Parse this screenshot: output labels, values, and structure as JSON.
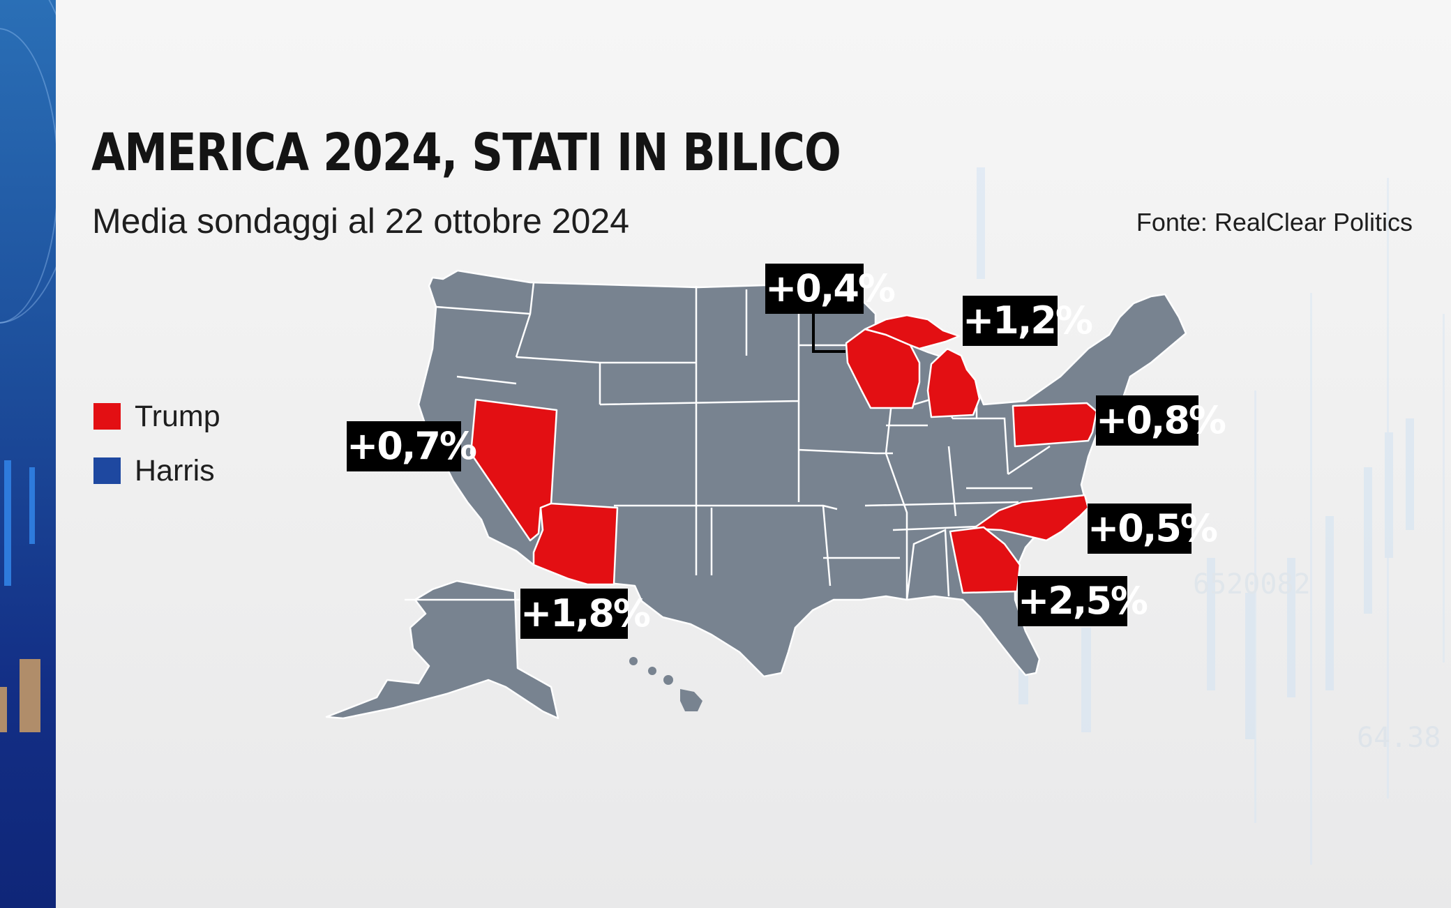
{
  "header": {
    "title": "AMERICA 2024, STATI IN BILICO",
    "subtitle": "Media sondaggi al 22 ottobre 2024",
    "source": "Fonte: RealClear Politics"
  },
  "legend": {
    "items": [
      {
        "label": "Trump",
        "color": "#e30f13"
      },
      {
        "label": "Harris",
        "color": "#1e48a0"
      }
    ]
  },
  "colors": {
    "base_state": "#788390",
    "trump": "#e30f13",
    "harris": "#1e48a0",
    "label_bg": "#000000",
    "label_text": "#ffffff"
  },
  "swing_states": [
    {
      "state": "Nevada",
      "leader": "Trump",
      "margin_label": "+0,7%"
    },
    {
      "state": "Arizona",
      "leader": "Trump",
      "margin_label": "+1,8%"
    },
    {
      "state": "Wisconsin",
      "leader": "Trump",
      "margin_label": "+0,4%"
    },
    {
      "state": "Michigan",
      "leader": "Trump",
      "margin_label": "+1,2%"
    },
    {
      "state": "Pennsylvania",
      "leader": "Trump",
      "margin_label": "+0,8%"
    },
    {
      "state": "North Carolina",
      "leader": "Trump",
      "margin_label": "+0,5%"
    },
    {
      "state": "Georgia",
      "leader": "Trump",
      "margin_label": "+2,5%"
    }
  ]
}
